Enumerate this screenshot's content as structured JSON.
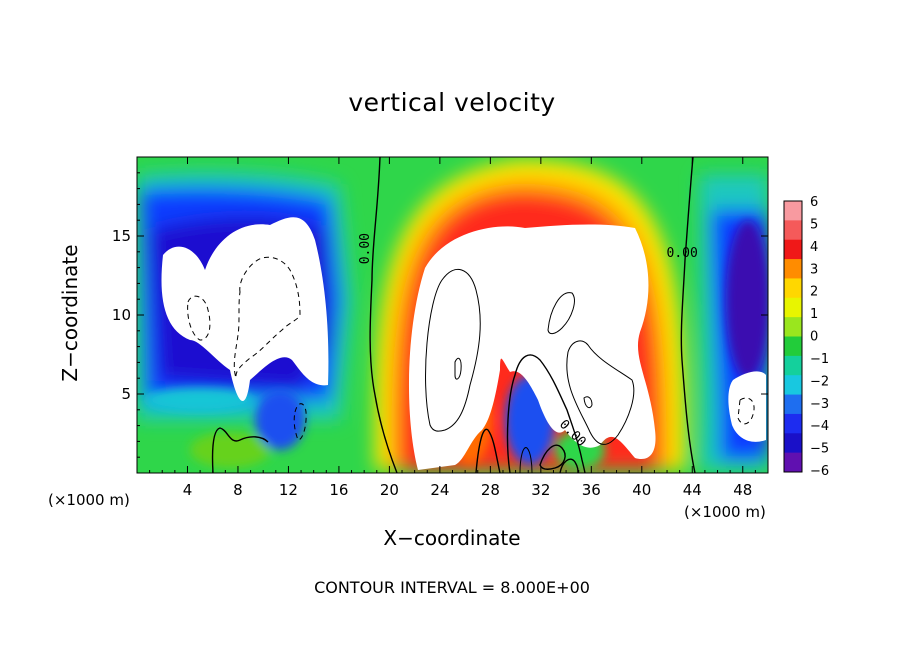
{
  "chart_data": {
    "type": "heatmap",
    "title": "vertical velocity",
    "xlabel": "X−coordinate",
    "ylabel": "Z−coordinate",
    "x_unit": "(×1000 m)",
    "note": "CONTOUR INTERVAL = 8.000E+00",
    "xlim": [
      0,
      50
    ],
    "ylim": [
      0,
      20
    ],
    "x_ticks": [
      4,
      8,
      12,
      16,
      20,
      24,
      28,
      32,
      36,
      40,
      44,
      48
    ],
    "y_ticks": [
      5,
      10,
      15
    ],
    "colorbar": {
      "levels": [
        6,
        5,
        4,
        3,
        2,
        1,
        0,
        -1,
        -2,
        -3,
        -4,
        -5,
        -6
      ],
      "labels": [
        "6",
        "5",
        "4",
        "3",
        "2",
        "1",
        "0",
        "−1",
        "−2",
        "−3",
        "−4",
        "−5",
        "−6"
      ]
    },
    "contour_labels": [
      {
        "text": "0.00",
        "x": 18.1,
        "y": 14.2,
        "rotate": -90
      },
      {
        "text": "0.00",
        "x": 43.2,
        "y": 13.9,
        "rotate": 0
      },
      {
        "text": "0.00",
        "x": 34.5,
        "y": 2.5,
        "rotate": 45
      }
    ]
  }
}
